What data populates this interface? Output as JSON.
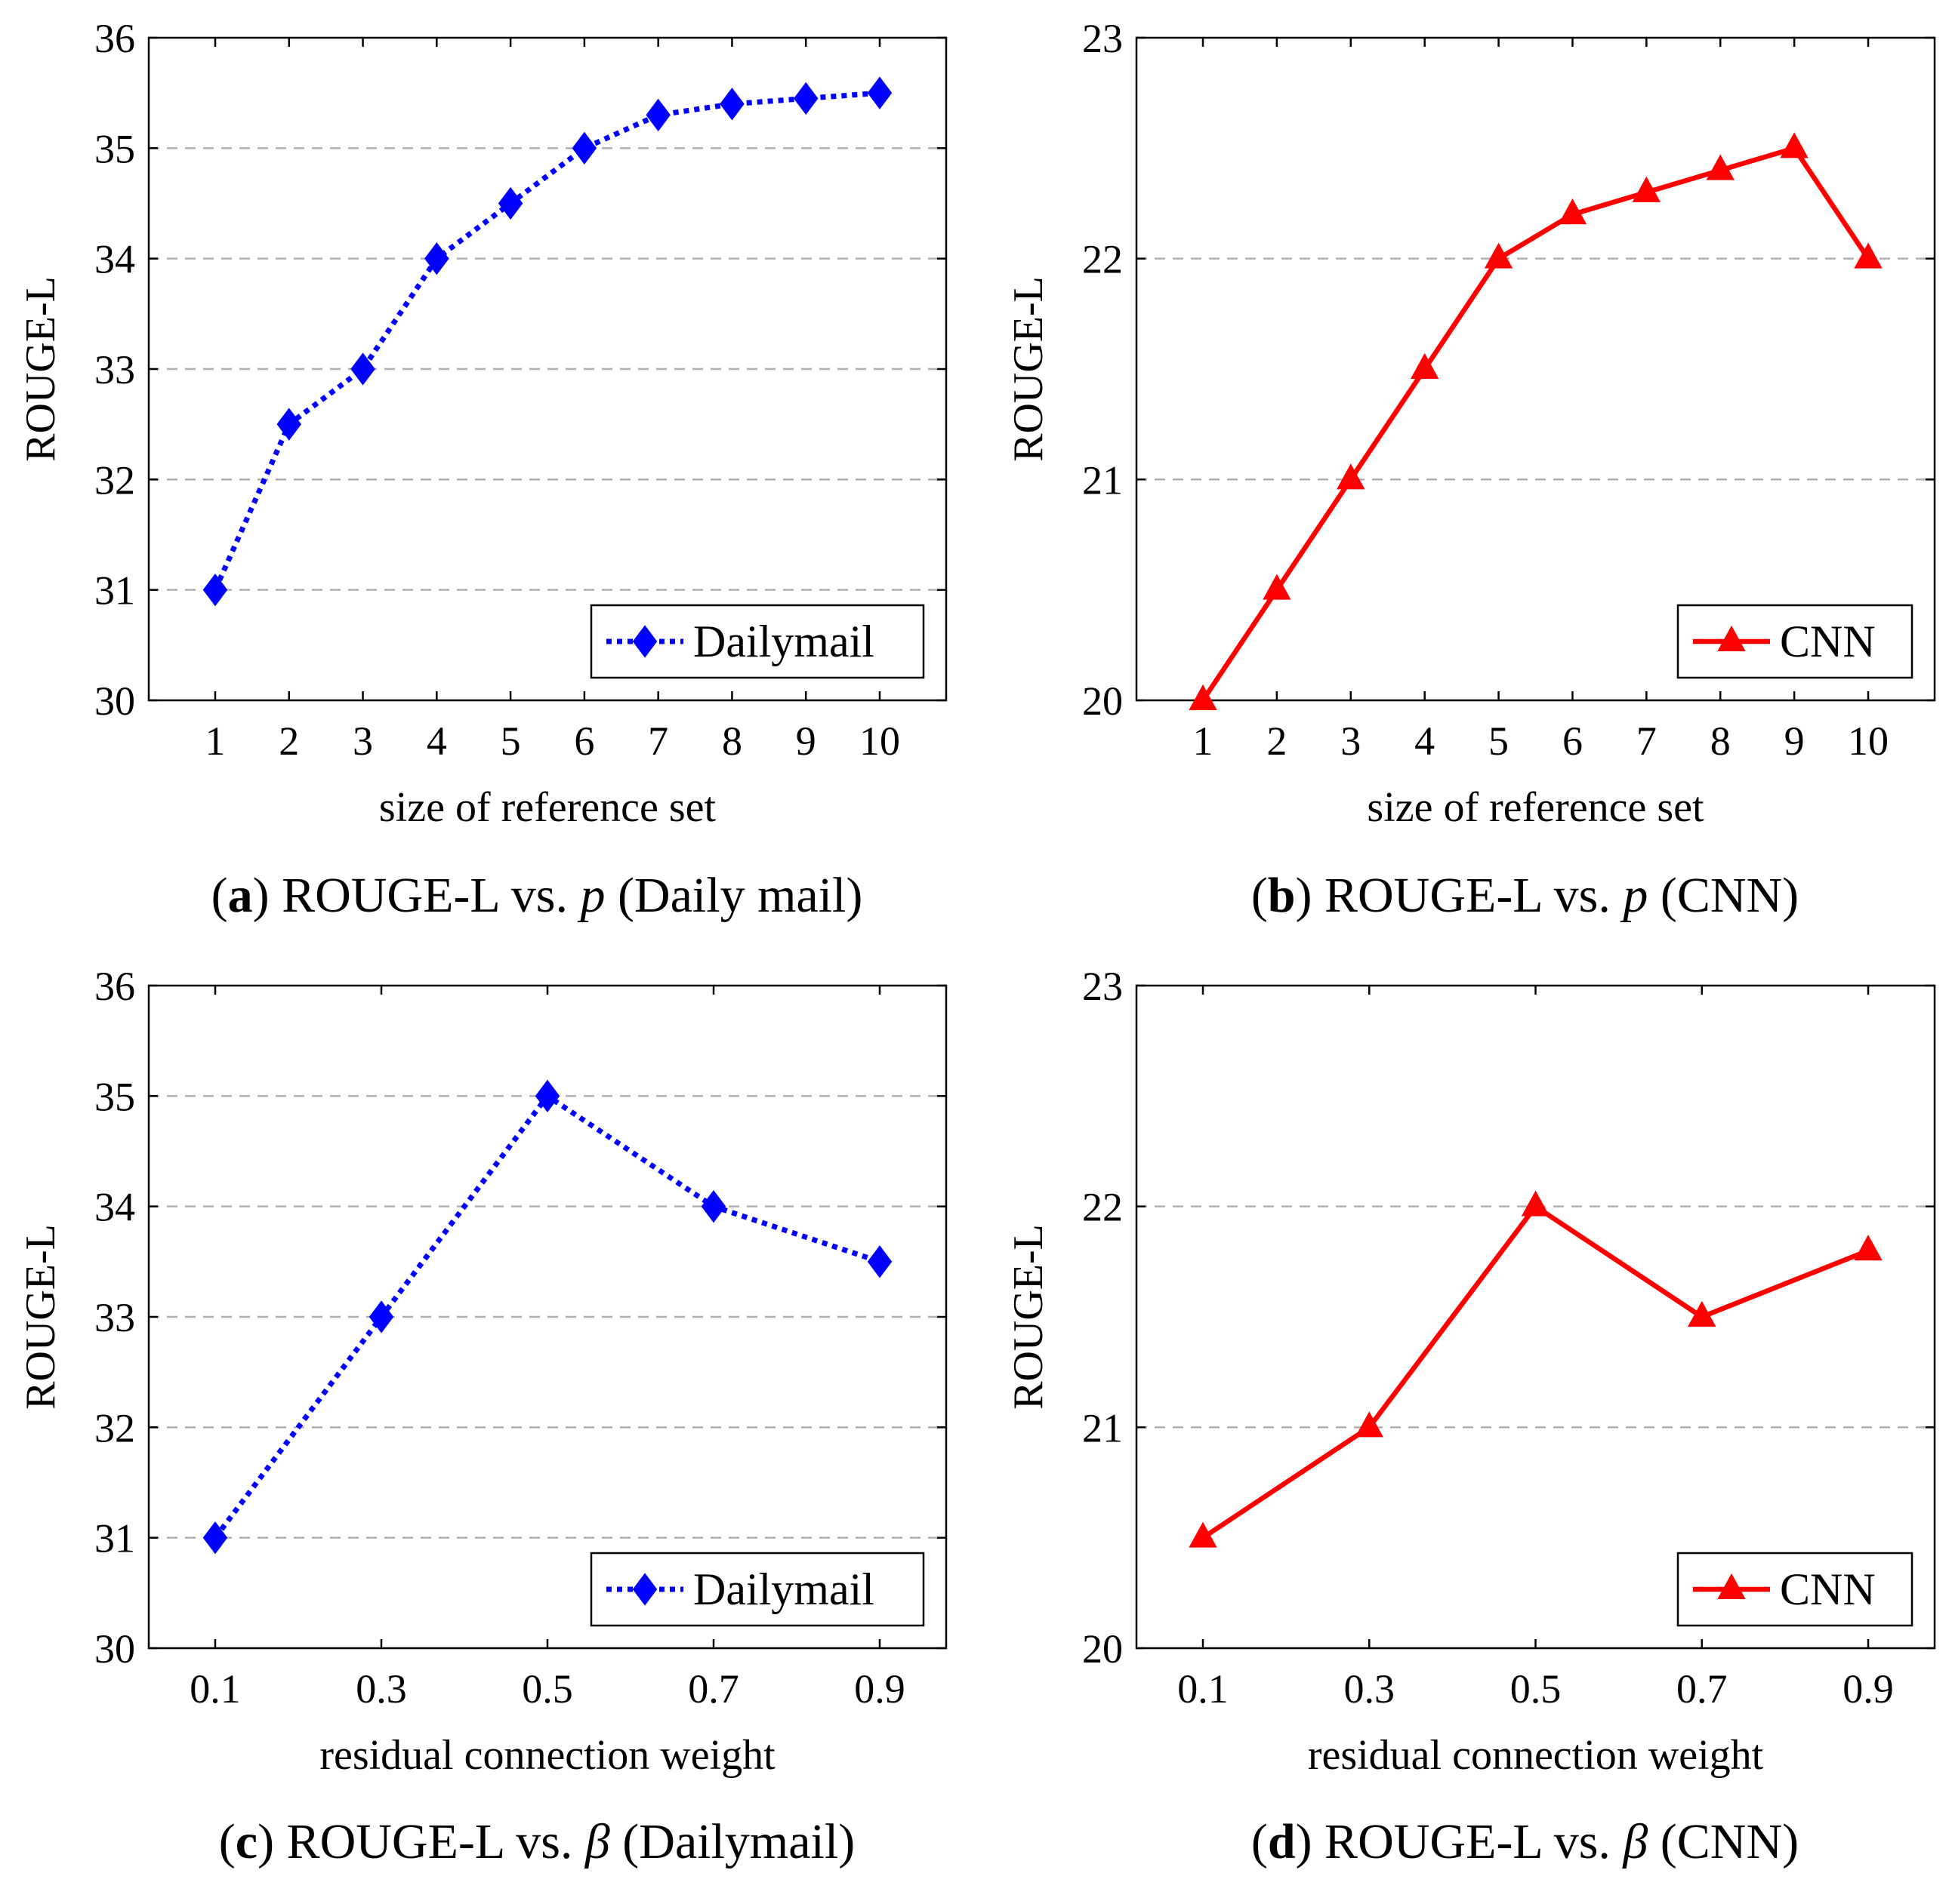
{
  "figure": {
    "type": "figure-grid"
  },
  "chart_data": [
    {
      "type": "line",
      "panel": "a",
      "caption_letter": "a",
      "caption_text": " ROUGE-L vs. ",
      "caption_symbol": "p",
      "caption_suffix": " (Daily mail)",
      "xlabel": "size of reference set",
      "ylabel": "ROUGE-L",
      "ylim": [
        30,
        36
      ],
      "yticks": [
        30,
        31,
        32,
        33,
        34,
        35,
        36
      ],
      "categories": [
        "1",
        "2",
        "3",
        "4",
        "5",
        "6",
        "7",
        "8",
        "9",
        "10"
      ],
      "grid": "horizontal-dashed",
      "legend_position": "bottom-right",
      "series": [
        {
          "name": "Dailymail",
          "color": "#0000ff",
          "style": "dotted",
          "marker": "diamond",
          "values": [
            31,
            32.5,
            33,
            34,
            34.5,
            35,
            35.3,
            35.4,
            35.45,
            35.5
          ]
        }
      ]
    },
    {
      "type": "line",
      "panel": "b",
      "caption_letter": "b",
      "caption_text": " ROUGE-L vs. ",
      "caption_symbol": "p",
      "caption_suffix": " (CNN)",
      "xlabel": "size of reference set",
      "ylabel": "ROUGE-L",
      "ylim": [
        20,
        23
      ],
      "yticks": [
        20,
        21,
        22,
        23
      ],
      "categories": [
        "1",
        "2",
        "3",
        "4",
        "5",
        "6",
        "7",
        "8",
        "9",
        "10"
      ],
      "grid": "horizontal-dashed",
      "legend_position": "bottom-right",
      "series": [
        {
          "name": "CNN",
          "color": "#ff0000",
          "style": "solid",
          "marker": "triangle",
          "values": [
            20,
            20.5,
            21,
            21.5,
            22,
            22.2,
            22.3,
            22.4,
            22.5,
            22
          ]
        }
      ]
    },
    {
      "type": "line",
      "panel": "c",
      "caption_letter": "c",
      "caption_text": " ROUGE-L vs. ",
      "caption_symbol": "β",
      "caption_suffix": " (Dailymail)",
      "xlabel": "residual connection weight",
      "ylabel": "ROUGE-L",
      "ylim": [
        30,
        36
      ],
      "yticks": [
        30,
        31,
        32,
        33,
        34,
        35,
        36
      ],
      "categories": [
        "0.1",
        "0.3",
        "0.5",
        "0.7",
        "0.9"
      ],
      "grid": "horizontal-dashed",
      "legend_position": "bottom-right",
      "series": [
        {
          "name": "Dailymail",
          "color": "#0000ff",
          "style": "dotted",
          "marker": "diamond",
          "values": [
            31,
            33,
            35,
            34,
            33.5
          ]
        }
      ]
    },
    {
      "type": "line",
      "panel": "d",
      "caption_letter": "d",
      "caption_text": " ROUGE-L vs. ",
      "caption_symbol": "β",
      "caption_suffix": " (CNN)",
      "xlabel": "residual connection weight",
      "ylabel": "ROUGE-L",
      "ylim": [
        20,
        23
      ],
      "yticks": [
        20,
        21,
        22,
        23
      ],
      "categories": [
        "0.1",
        "0.3",
        "0.5",
        "0.7",
        "0.9"
      ],
      "grid": "horizontal-dashed",
      "legend_position": "bottom-right",
      "series": [
        {
          "name": "CNN",
          "color": "#ff0000",
          "style": "solid",
          "marker": "triangle",
          "values": [
            20.5,
            21,
            22,
            21.5,
            21.8
          ]
        }
      ]
    }
  ]
}
